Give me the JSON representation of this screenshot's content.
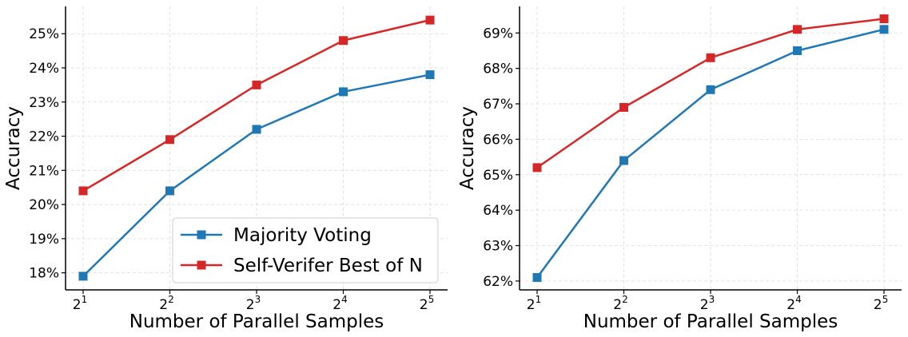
{
  "chart_data": [
    {
      "type": "line",
      "title": "",
      "xlabel": "Number of Parallel Samples",
      "ylabel": "Accuracy",
      "x_base": "2",
      "x_exponents": [
        "1",
        "2",
        "3",
        "4",
        "5"
      ],
      "y_ticks": [
        18,
        19,
        20,
        21,
        22,
        23,
        24,
        25
      ],
      "y_unit": "%",
      "ylim": [
        17.5,
        25.8
      ],
      "grid": true,
      "legend": {
        "placement": "lower-right",
        "entries": [
          "Majority Voting",
          "Self-Verifer Best of N"
        ]
      },
      "series": [
        {
          "name": "Majority Voting",
          "color": "#1f77b4",
          "marker": "square",
          "values": [
            17.9,
            20.4,
            22.2,
            23.3,
            23.8
          ]
        },
        {
          "name": "Self-Verifer Best of N",
          "color": "#d62728",
          "marker": "square",
          "values": [
            20.4,
            21.9,
            23.5,
            24.8,
            25.4
          ]
        }
      ]
    },
    {
      "type": "line",
      "title": "",
      "xlabel": "Number of Parallel Samples",
      "ylabel": "Accuracy",
      "x_base": "2",
      "x_exponents": [
        "1",
        "2",
        "3",
        "4",
        "5"
      ],
      "y_ticks": [
        62,
        63,
        64,
        65,
        66,
        67,
        68,
        69
      ],
      "y_unit": "%",
      "ylim": [
        61.75,
        69.75
      ],
      "grid": true,
      "legend": null,
      "series": [
        {
          "name": "Majority Voting",
          "color": "#1f77b4",
          "marker": "square",
          "values": [
            62.1,
            65.4,
            67.4,
            68.5,
            69.1
          ]
        },
        {
          "name": "Self-Verifer Best of N",
          "color": "#d62728",
          "marker": "square",
          "values": [
            65.2,
            66.9,
            68.3,
            69.1,
            69.4
          ]
        }
      ]
    }
  ]
}
